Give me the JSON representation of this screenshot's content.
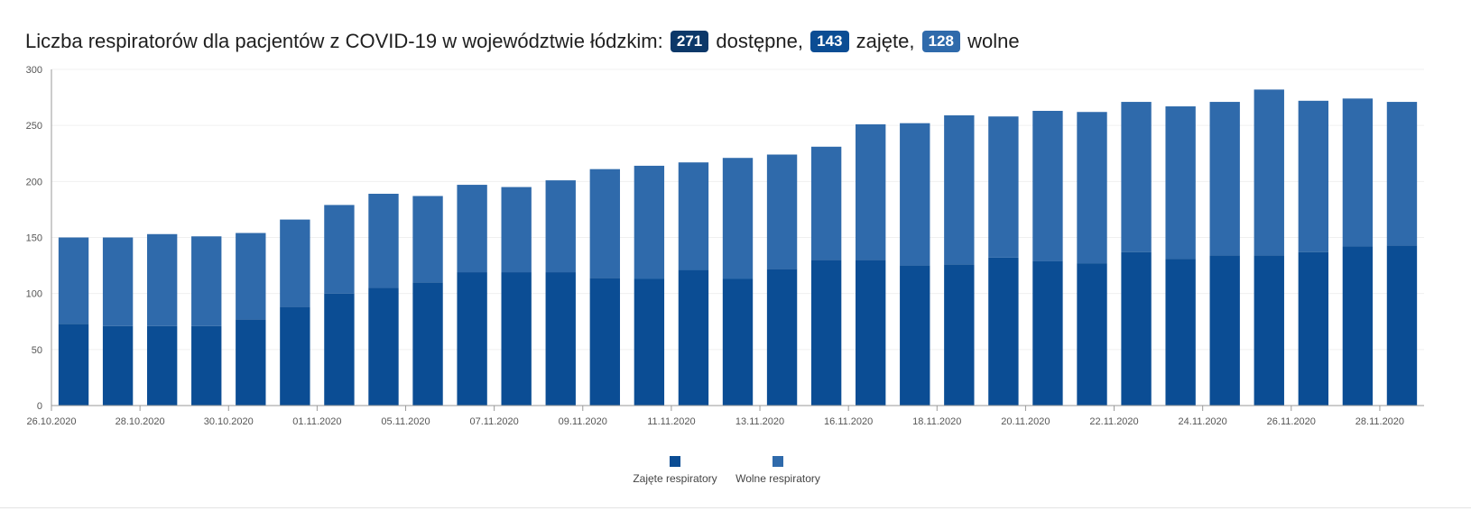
{
  "header": {
    "title_prefix": "Liczba respiratorów dla pacjentów z COVID-19 w województwie łódzkim:",
    "total_value": "271",
    "total_label": "dostępne,",
    "busy_value": "143",
    "busy_label": "zajęte,",
    "free_value": "128",
    "free_label": "wolne"
  },
  "colors": {
    "busy": "#0b4d94",
    "free": "#2f6aab",
    "axis": "#9a9a9a",
    "grid": "#f0f0f0"
  },
  "chart_data": {
    "type": "bar",
    "stacked": true,
    "title": "",
    "xlabel": "",
    "ylabel": "",
    "ylim": [
      0,
      300
    ],
    "yticks": [
      0,
      50,
      100,
      150,
      200,
      250,
      300
    ],
    "grid": true,
    "legend_position": "bottom-center",
    "categories": [
      "26.10.2020",
      "27.10.2020",
      "28.10.2020",
      "29.10.2020",
      "30.10.2020",
      "31.10.2020",
      "01.11.2020",
      "02.11.2020",
      "05.11.2020",
      "06.11.2020",
      "07.11.2020",
      "08.11.2020",
      "09.11.2020",
      "10.11.2020",
      "11.11.2020",
      "12.11.2020",
      "13.11.2020",
      "14.11.2020",
      "16.11.2020",
      "17.11.2020",
      "18.11.2020",
      "19.11.2020",
      "20.11.2020",
      "21.11.2020",
      "22.11.2020",
      "23.11.2020",
      "24.11.2020",
      "25.11.2020",
      "26.11.2020",
      "27.11.2020",
      "28.11.2020"
    ],
    "xtick_labels": [
      "26.10.2020",
      "28.10.2020",
      "30.10.2020",
      "01.11.2020",
      "05.11.2020",
      "07.11.2020",
      "09.11.2020",
      "11.11.2020",
      "13.11.2020",
      "16.11.2020",
      "18.11.2020",
      "20.11.2020",
      "22.11.2020",
      "24.11.2020",
      "26.11.2020",
      "28.11.2020"
    ],
    "series": [
      {
        "name": "Zajęte respiratory",
        "values": [
          73,
          71,
          71,
          71,
          77,
          88,
          100,
          105,
          110,
          119,
          119,
          119,
          114,
          113,
          121,
          113,
          122,
          130,
          130,
          125,
          126,
          132,
          129,
          127,
          137,
          131,
          134,
          134,
          137,
          142,
          143
        ]
      },
      {
        "name": "Wolne respiratory",
        "values": [
          77,
          79,
          82,
          80,
          77,
          78,
          79,
          84,
          77,
          78,
          76,
          82,
          97,
          101,
          96,
          108,
          102,
          101,
          121,
          127,
          133,
          126,
          134,
          135,
          134,
          136,
          137,
          148,
          135,
          132,
          128
        ]
      }
    ]
  }
}
